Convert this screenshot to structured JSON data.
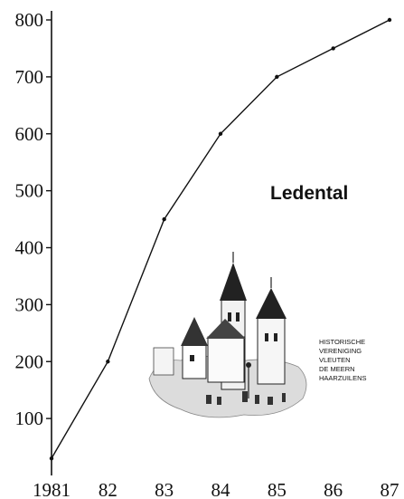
{
  "chart_data": {
    "type": "line",
    "title": "Ledental",
    "xlabel": "",
    "ylabel": "",
    "x": [
      1981,
      1982,
      1983,
      1984,
      1985,
      1986,
      1987
    ],
    "x_tick_labels": [
      "1981",
      "82",
      "83",
      "84",
      "85",
      "86",
      "87"
    ],
    "series": [
      {
        "values": [
          30,
          200,
          450,
          600,
          700,
          750,
          800
        ]
      }
    ],
    "y_ticks": [
      100,
      200,
      300,
      400,
      500,
      600,
      700,
      800
    ],
    "ylim": [
      0,
      800
    ],
    "grid": false,
    "line_color": "#111111"
  },
  "logo": {
    "name": "historische-vereniging-logo",
    "lines": [
      "HISTORISCHE",
      "VERENIGING",
      "VLEUTEN",
      "DE MEERN",
      "HAARZUILENS"
    ]
  }
}
